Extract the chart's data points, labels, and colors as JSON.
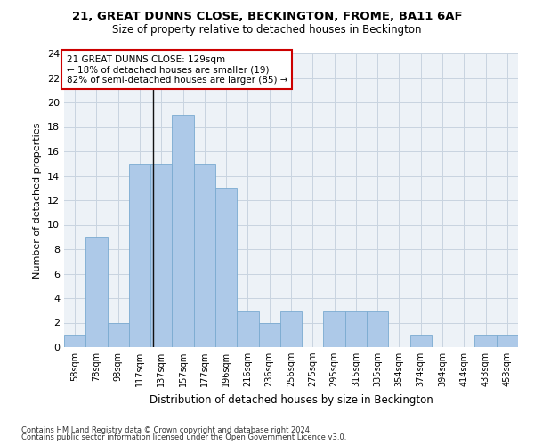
{
  "title1": "21, GREAT DUNNS CLOSE, BECKINGTON, FROME, BA11 6AF",
  "title2": "Size of property relative to detached houses in Beckington",
  "xlabel": "Distribution of detached houses by size in Beckington",
  "ylabel": "Number of detached properties",
  "categories": [
    "58sqm",
    "78sqm",
    "98sqm",
    "117sqm",
    "137sqm",
    "157sqm",
    "177sqm",
    "196sqm",
    "216sqm",
    "236sqm",
    "256sqm",
    "275sqm",
    "295sqm",
    "315sqm",
    "335sqm",
    "354sqm",
    "374sqm",
    "394sqm",
    "414sqm",
    "433sqm",
    "453sqm"
  ],
  "values": [
    1,
    9,
    2,
    15,
    15,
    19,
    15,
    13,
    3,
    2,
    3,
    0,
    3,
    3,
    3,
    0,
    1,
    0,
    0,
    1,
    1
  ],
  "bar_color": "#adc9e8",
  "bar_edge_color": "#7aaad0",
  "annotation_text_line1": "21 GREAT DUNNS CLOSE: 129sqm",
  "annotation_text_line2": "← 18% of detached houses are smaller (19)",
  "annotation_text_line3": "82% of semi-detached houses are larger (85) →",
  "annotation_box_color": "#ffffff",
  "annotation_box_edge": "#cc0000",
  "vline_color": "#111111",
  "ylim": [
    0,
    24
  ],
  "yticks": [
    0,
    2,
    4,
    6,
    8,
    10,
    12,
    14,
    16,
    18,
    20,
    22,
    24
  ],
  "footer1": "Contains HM Land Registry data © Crown copyright and database right 2024.",
  "footer2": "Contains public sector information licensed under the Open Government Licence v3.0.",
  "bg_color": "#edf2f7",
  "grid_color": "#c8d4e0"
}
